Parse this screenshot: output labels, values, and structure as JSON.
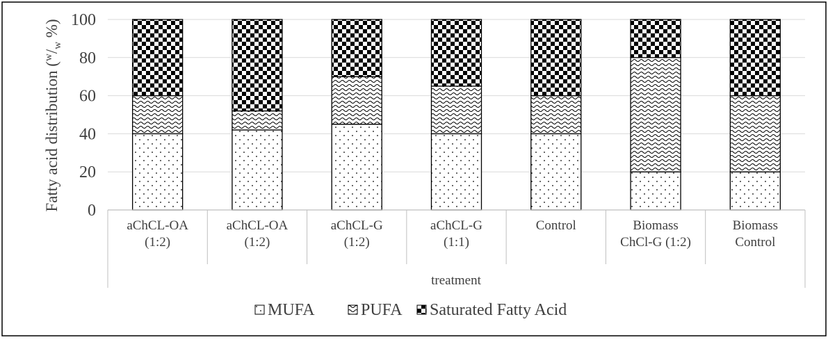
{
  "chart_data": {
    "type": "bar",
    "stacked": true,
    "title": "",
    "xlabel": "treatment",
    "ylabel_main": "Fatty acid distribution (",
    "ylabel_sup": "w",
    "ylabel_sub": "w",
    "ylabel_tail": " %)",
    "ylim": [
      0,
      100
    ],
    "yticks": [
      0,
      20,
      40,
      60,
      80,
      100
    ],
    "grid": true,
    "legend_position": "bottom",
    "categories": [
      [
        "aChCL-OA",
        "(1:2)"
      ],
      [
        "aChCL-OA",
        "(1:2)"
      ],
      [
        "aChCL-G",
        "(1:2)"
      ],
      [
        "aChCL-G",
        "(1:1)"
      ],
      [
        "Control"
      ],
      [
        "Biomass",
        "ChCl-G (1:2)"
      ],
      [
        "Biomass",
        "Control"
      ]
    ],
    "series": [
      {
        "name": "MUFA",
        "pattern": "dots",
        "values": [
          40,
          42,
          45,
          40,
          40,
          20,
          20
        ]
      },
      {
        "name": "PUFA",
        "pattern": "waves",
        "values": [
          20,
          10,
          25,
          25,
          20,
          60,
          40
        ]
      },
      {
        "name": "Saturated Fatty Acid",
        "pattern": "checker",
        "values": [
          40,
          48,
          30,
          35,
          40,
          20,
          40
        ]
      }
    ],
    "colors": {
      "text": "#404040",
      "grid": "#d9d9d9",
      "axis": "#bfbfbf",
      "bar_outline": "#000000"
    }
  }
}
